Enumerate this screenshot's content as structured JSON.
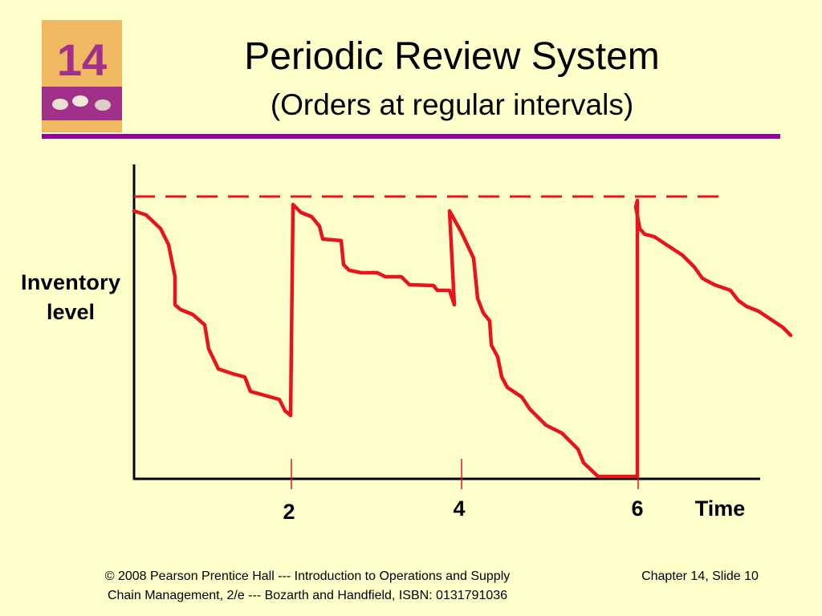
{
  "header": {
    "badge": "14",
    "title": "Periodic Review System",
    "subtitle": "(Orders at regular intervals)"
  },
  "diagram": {
    "y_label_line1": "Inventory",
    "y_label_line2": "level",
    "x_label": "Time",
    "ticks": [
      "2",
      "4",
      "6"
    ]
  },
  "footer": {
    "citation_line1": "© 2008 Pearson Prentice Hall --- Introduction to Operations and Supply",
    "citation_line2": "Chain Management, 2/e --- Bozarth and Handfield, ISBN: 0131791036",
    "slide": "Chapter 14, Slide 10"
  }
}
